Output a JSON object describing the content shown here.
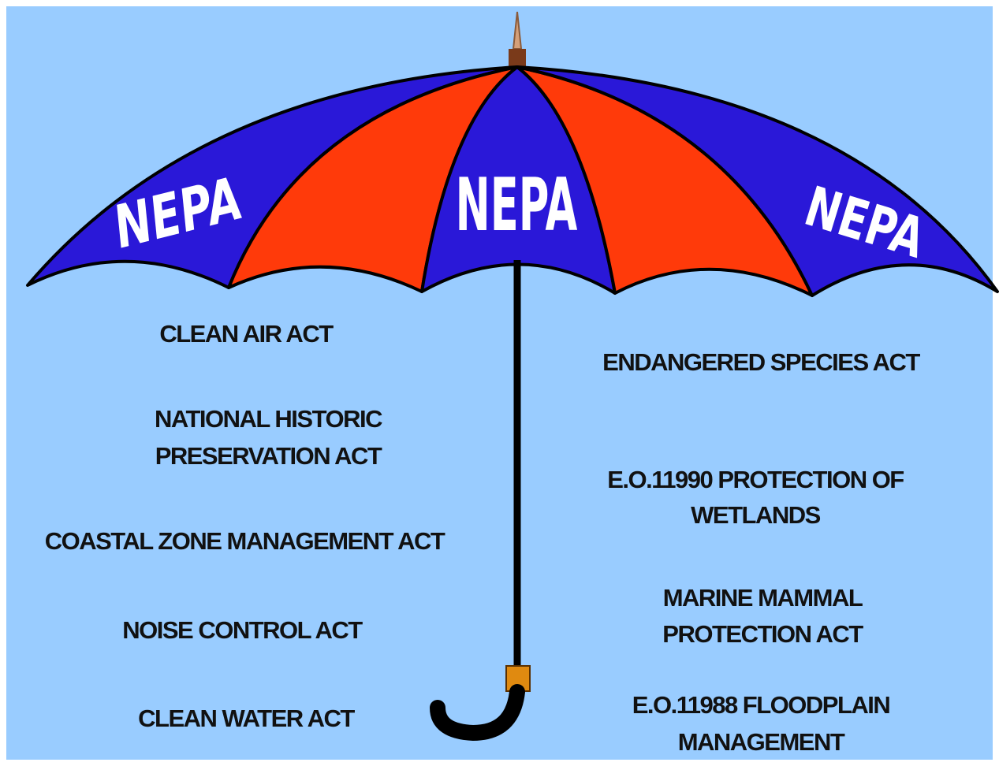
{
  "umbrella": {
    "canopy_labels": [
      "NEPA",
      "NEPA",
      "NEPA"
    ]
  },
  "left_acts": [
    {
      "lines": [
        "CLEAN AIR ACT"
      ]
    },
    {
      "lines": [
        "NATIONAL HISTORIC",
        "PRESERVATION ACT"
      ]
    },
    {
      "lines": [
        "COASTAL ZONE MANAGEMENT ACT"
      ]
    },
    {
      "lines": [
        "NOISE CONTROL ACT"
      ]
    },
    {
      "lines": [
        "CLEAN WATER ACT"
      ]
    }
  ],
  "right_acts": [
    {
      "lines": [
        "ENDANGERED SPECIES ACT"
      ]
    },
    {
      "lines": [
        "E.O.11990 PROTECTION OF",
        "WETLANDS"
      ]
    },
    {
      "lines": [
        "MARINE MAMMAL",
        "PROTECTION ACT"
      ]
    },
    {
      "lines": [
        "E.O.11988 FLOODPLAIN",
        "MANAGEMENT"
      ]
    }
  ]
}
